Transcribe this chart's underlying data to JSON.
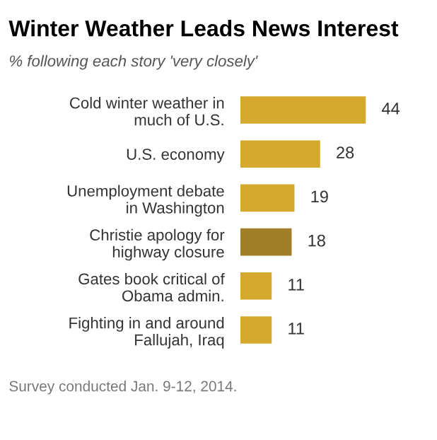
{
  "chart_data": {
    "type": "bar",
    "orientation": "horizontal",
    "title": "Winter Weather Leads News Interest",
    "subtitle": "% following each story 'very closely'",
    "categories": [
      "Cold winter weather in\nmuch of U.S.",
      "U.S. economy",
      "Unemployment debate\nin Washington",
      "Christie apology for\nhighway closure",
      "Gates book critical of\nObama admin.",
      "Fighting in and around\nFallujah, Iraq"
    ],
    "values": [
      44,
      28,
      19,
      18,
      11,
      11
    ],
    "colors": [
      "#d4a92e",
      "#d4a92e",
      "#d4a92e",
      "#a07f28",
      "#d4a92e",
      "#d4a92e"
    ],
    "data_labels": true,
    "grid": false,
    "legend": false,
    "annotations": [
      "Survey conducted Jan. 9-12, 2014."
    ]
  }
}
